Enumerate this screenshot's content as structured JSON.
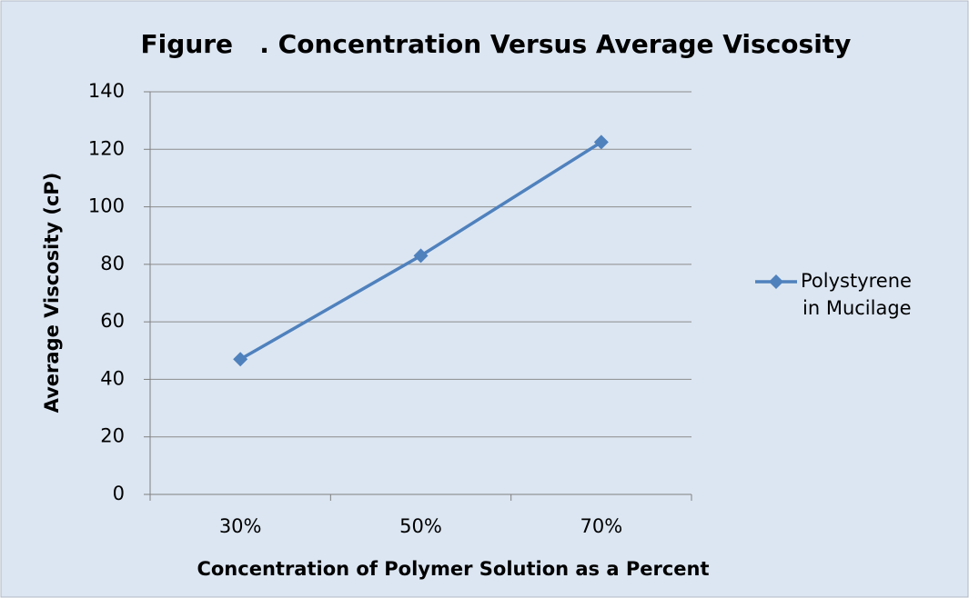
{
  "chart_data": {
    "type": "line",
    "title": "Figure   . Concentration Versus Average Viscosity",
    "x_label": "Concentration of Polymer Solution as a Percent",
    "y_label": "Average Viscosity (cP)",
    "categories": [
      "30%",
      "50%",
      "70%"
    ],
    "series": [
      {
        "name": "Polystyrene in Mucilage",
        "color": "#4f81bd",
        "values": [
          47,
          83,
          122.5
        ]
      }
    ],
    "ylim": [
      0,
      140
    ],
    "yticks": [
      0,
      20,
      40,
      60,
      80,
      100,
      120,
      140
    ],
    "grid": true,
    "legend": "right"
  }
}
